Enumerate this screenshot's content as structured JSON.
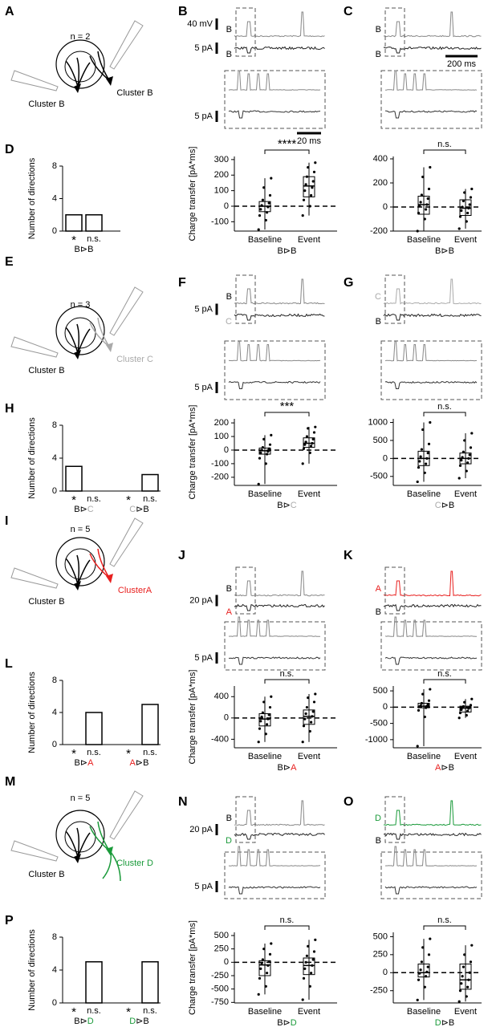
{
  "rows": [
    {
      "diagram": {
        "letter": "A",
        "n": "n = 2",
        "labels": [
          {
            "text": "Cluster B",
            "color": "#000000"
          },
          {
            "text": "Cluster B",
            "color": "#000000"
          }
        ]
      },
      "trace_panels": [
        {
          "letter": "B",
          "labels": [
            {
              "text": "B",
              "color": "#000000"
            },
            {
              "text": "B",
              "color": "#000000"
            }
          ],
          "scales": [
            "40 mV",
            "5 pA"
          ],
          "zoom_scales": [
            "5 pA",
            "20 ms"
          ]
        },
        {
          "letter": "C",
          "labels": [
            {
              "text": "B",
              "color": "#000000"
            },
            {
              "text": "B",
              "color": "#000000"
            }
          ],
          "scales": [
            "200 ms"
          ]
        }
      ]
    },
    {
      "diagram": {
        "letter": "E",
        "n": "n = 3",
        "labels": [
          {
            "text": "Cluster B",
            "color": "#000000"
          },
          {
            "text": "Cluster C",
            "color": "#aaaaaa"
          }
        ]
      },
      "trace_panels": [
        {
          "letter": "F",
          "labels": [
            {
              "text": "B",
              "color": "#000000"
            },
            {
              "text": "C",
              "color": "#aaaaaa"
            }
          ],
          "scales": [
            "5 pA"
          ],
          "zoom_scales": [
            "5 pA"
          ]
        },
        {
          "letter": "G",
          "labels": [
            {
              "text": "C",
              "color": "#aaaaaa"
            },
            {
              "text": "B",
              "color": "#000000"
            }
          ]
        }
      ]
    },
    {
      "diagram": {
        "letter": "I",
        "n": "n = 5",
        "labels": [
          {
            "text": "Cluster B",
            "color": "#000000"
          },
          {
            "text": "ClusterA",
            "color": "#e8201f"
          }
        ]
      },
      "trace_panels": [
        {
          "letter": "J",
          "labels": [
            {
              "text": "B",
              "color": "#000000"
            },
            {
              "text": "A",
              "color": "#e8201f"
            }
          ],
          "scales": [
            "20 pA"
          ],
          "zoom_scales": [
            "5 pA"
          ]
        },
        {
          "letter": "K",
          "labels": [
            {
              "text": "A",
              "color": "#e8201f"
            },
            {
              "text": "B",
              "color": "#000000"
            }
          ]
        }
      ]
    },
    {
      "diagram": {
        "letter": "M",
        "n": "n = 5",
        "labels": [
          {
            "text": "Cluster B",
            "color": "#000000"
          },
          {
            "text": "Cluster D",
            "color": "#1a9a3a"
          }
        ]
      },
      "trace_panels": [
        {
          "letter": "N",
          "labels": [
            {
              "text": "B",
              "color": "#000000"
            },
            {
              "text": "D",
              "color": "#1a9a3a"
            }
          ],
          "scales": [
            "20 pA"
          ],
          "zoom_scales": [
            "5 pA"
          ]
        },
        {
          "letter": "O",
          "labels": [
            {
              "text": "D",
              "color": "#1a9a3a"
            },
            {
              "text": "B",
              "color": "#000000"
            }
          ]
        }
      ]
    }
  ],
  "chart_data": [
    {
      "type": "bar",
      "panel": "D",
      "ylabel": "Number of directions",
      "categories": [
        "*",
        "n.s."
      ],
      "values": [
        2,
        2
      ],
      "color": "#ffffff",
      "groups": [
        [
          {
            "text": "B",
            "color": "#000000"
          },
          {
            "text": "⊳",
            "color": "#000000"
          },
          {
            "text": "B",
            "color": "#000000"
          }
        ]
      ],
      "ylim": [
        0,
        8
      ],
      "yticks": [
        0,
        4,
        8
      ]
    },
    {
      "type": "box",
      "ylabel": "Charge transfer [pA*ms]",
      "significance": "****",
      "hline": 0,
      "xlabel": [
        {
          "text": "B",
          "color": "#000000"
        },
        {
          "text": "⊳",
          "color": "#000000"
        },
        {
          "text": "B",
          "color": "#000000"
        }
      ],
      "ylim": [
        -160,
        320
      ],
      "yticks": [
        -100,
        0,
        100,
        200,
        300
      ],
      "series": [
        {
          "name": "Baseline",
          "box": [
            -150,
            -35,
            0,
            30,
            180
          ],
          "points": [
            -150,
            -90,
            -60,
            -40,
            -20,
            -5,
            5,
            20,
            40,
            70,
            120,
            180
          ]
        },
        {
          "name": "Event",
          "box": [
            -60,
            60,
            130,
            190,
            280
          ],
          "points": [
            -60,
            0,
            40,
            70,
            100,
            120,
            140,
            160,
            190,
            220,
            250,
            280
          ]
        }
      ]
    },
    {
      "type": "box",
      "significance": "n.s.",
      "hline": 0,
      "xlabel": [
        {
          "text": "B",
          "color": "#000000"
        },
        {
          "text": "⊳",
          "color": "#000000"
        },
        {
          "text": "B",
          "color": "#000000"
        }
      ],
      "ylim": [
        -200,
        420
      ],
      "yticks": [
        -200,
        0,
        200,
        400
      ],
      "series": [
        {
          "name": "Baseline",
          "box": [
            -200,
            -60,
            20,
            90,
            330
          ],
          "points": [
            -200,
            -100,
            -50,
            -20,
            10,
            20,
            40,
            70,
            100,
            150,
            250,
            330
          ]
        },
        {
          "name": "Event",
          "box": [
            -180,
            -70,
            -10,
            60,
            150
          ],
          "points": [
            -180,
            -120,
            -80,
            -50,
            -30,
            -10,
            0,
            20,
            50,
            80,
            120,
            150
          ]
        }
      ]
    },
    {
      "type": "bar",
      "panel": "H",
      "ylabel": "Number of directions",
      "categories": [
        "*",
        "n.s.",
        "*",
        "n.s."
      ],
      "values": [
        3,
        0,
        0,
        2
      ],
      "color": "#ffffff",
      "groups": [
        [
          {
            "text": "B",
            "color": "#000000"
          },
          {
            "text": "⊳",
            "color": "#000000"
          },
          {
            "text": "C",
            "color": "#aaaaaa"
          }
        ],
        [
          {
            "text": "C",
            "color": "#aaaaaa"
          },
          {
            "text": "⊳",
            "color": "#000000"
          },
          {
            "text": "B",
            "color": "#000000"
          }
        ]
      ],
      "ylim": [
        0,
        8
      ],
      "yticks": [
        0,
        4,
        8
      ]
    },
    {
      "type": "box",
      "ylabel": "Charge transfer [pA*ms]",
      "significance": "***",
      "hline": 0,
      "xlabel": [
        {
          "text": "B",
          "color": "#000000"
        },
        {
          "text": "⊳",
          "color": "#000000"
        },
        {
          "text": "C",
          "color": "#aaaaaa"
        }
      ],
      "ylim": [
        -260,
        230
      ],
      "yticks": [
        -200,
        -100,
        0,
        100,
        200
      ],
      "series": [
        {
          "name": "Baseline",
          "box": [
            -250,
            -30,
            -5,
            15,
            110
          ],
          "points": [
            -250,
            -100,
            -60,
            -30,
            -20,
            -10,
            0,
            10,
            20,
            40,
            80,
            110
          ]
        },
        {
          "name": "Event",
          "box": [
            -100,
            20,
            50,
            90,
            170
          ],
          "points": [
            -100,
            -20,
            10,
            30,
            40,
            50,
            60,
            80,
            100,
            130,
            160,
            170
          ]
        }
      ]
    },
    {
      "type": "box",
      "significance": "n.s.",
      "hline": 0,
      "xlabel": [
        {
          "text": "C",
          "color": "#aaaaaa"
        },
        {
          "text": "⊳",
          "color": "#000000"
        },
        {
          "text": "B",
          "color": "#000000"
        }
      ],
      "ylim": [
        -750,
        1100
      ],
      "yticks": [
        -500,
        0,
        500,
        1000
      ],
      "series": [
        {
          "name": "Baseline",
          "box": [
            -650,
            -200,
            0,
            200,
            1000
          ],
          "points": [
            -650,
            -400,
            -250,
            -150,
            -80,
            0,
            50,
            150,
            250,
            400,
            800,
            1000
          ]
        },
        {
          "name": "Event",
          "box": [
            -550,
            -150,
            0,
            150,
            700
          ],
          "points": [
            -550,
            -350,
            -200,
            -120,
            -50,
            0,
            30,
            100,
            180,
            300,
            500,
            700
          ]
        }
      ]
    },
    {
      "type": "bar",
      "panel": "L",
      "ylabel": "Number of directions",
      "categories": [
        "*",
        "n.s.",
        "*",
        "n.s."
      ],
      "values": [
        0,
        4,
        0,
        5
      ],
      "color": "#ffffff",
      "groups": [
        [
          {
            "text": "B",
            "color": "#000000"
          },
          {
            "text": "⊳",
            "color": "#000000"
          },
          {
            "text": "A",
            "color": "#e8201f"
          }
        ],
        [
          {
            "text": "A",
            "color": "#e8201f"
          },
          {
            "text": "⊳",
            "color": "#000000"
          },
          {
            "text": "B",
            "color": "#000000"
          }
        ]
      ],
      "ylim": [
        0,
        8
      ],
      "yticks": [
        0,
        4,
        8
      ]
    },
    {
      "type": "box",
      "ylabel": "Charge transfer [pA*ms]",
      "significance": "n.s.",
      "hline": 0,
      "xlabel": [
        {
          "text": "B",
          "color": "#000000"
        },
        {
          "text": "⊳",
          "color": "#000000"
        },
        {
          "text": "A",
          "color": "#e8201f"
        }
      ],
      "ylim": [
        -560,
        600
      ],
      "yticks": [
        -400,
        0,
        400
      ],
      "series": [
        {
          "name": "Baseline",
          "box": [
            -450,
            -150,
            -20,
            80,
            400
          ],
          "points": [
            -450,
            -300,
            -200,
            -120,
            -60,
            -20,
            20,
            60,
            100,
            200,
            300,
            400
          ]
        },
        {
          "name": "Event",
          "box": [
            -450,
            -120,
            30,
            150,
            450
          ],
          "points": [
            -450,
            -250,
            -150,
            -80,
            -20,
            30,
            80,
            120,
            200,
            300,
            380,
            450
          ]
        }
      ]
    },
    {
      "type": "box",
      "significance": "n.s.",
      "hline": 0,
      "xlabel": [
        {
          "text": "A",
          "color": "#e8201f"
        },
        {
          "text": "⊳",
          "color": "#000000"
        },
        {
          "text": "B",
          "color": "#000000"
        }
      ],
      "ylim": [
        -1250,
        650
      ],
      "yticks": [
        -1000,
        -500,
        0,
        500
      ],
      "series": [
        {
          "name": "Baseline",
          "box": [
            -1200,
            -20,
            30,
            120,
            550
          ],
          "points": [
            -1200,
            -300,
            -100,
            -20,
            10,
            30,
            50,
            80,
            120,
            200,
            400,
            550
          ]
        },
        {
          "name": "Event",
          "box": [
            -330,
            -150,
            -30,
            30,
            250
          ],
          "points": [
            -330,
            -250,
            -180,
            -120,
            -80,
            -40,
            -20,
            0,
            20,
            60,
            150,
            250
          ]
        }
      ]
    },
    {
      "type": "bar",
      "panel": "P",
      "ylabel": "Number of directions",
      "categories": [
        "*",
        "n.s.",
        "*",
        "n.s."
      ],
      "values": [
        0,
        5,
        0,
        5
      ],
      "color": "#ffffff",
      "groups": [
        [
          {
            "text": "B",
            "color": "#000000"
          },
          {
            "text": "⊳",
            "color": "#000000"
          },
          {
            "text": "D",
            "color": "#1a9a3a"
          }
        ],
        [
          {
            "text": "D",
            "color": "#1a9a3a"
          },
          {
            "text": "⊳",
            "color": "#000000"
          },
          {
            "text": "B",
            "color": "#000000"
          }
        ]
      ],
      "ylim": [
        0,
        8
      ],
      "yticks": [
        0,
        4,
        8
      ]
    },
    {
      "type": "box",
      "ylabel": "Charge transfer [pA*ms]",
      "significance": "n.s.",
      "hline": 0,
      "xlabel": [
        {
          "text": "B",
          "color": "#000000"
        },
        {
          "text": "⊳",
          "color": "#000000"
        },
        {
          "text": "D",
          "color": "#1a9a3a"
        }
      ],
      "ylim": [
        -760,
        560
      ],
      "yticks": [
        -750,
        -500,
        -250,
        0,
        250,
        500
      ],
      "series": [
        {
          "name": "Baseline",
          "box": [
            -600,
            -250,
            -50,
            30,
            350
          ],
          "points": [
            -600,
            -450,
            -300,
            -200,
            -120,
            -60,
            -20,
            10,
            50,
            150,
            250,
            350
          ]
        },
        {
          "name": "Event",
          "box": [
            -700,
            -230,
            -60,
            80,
            420
          ],
          "points": [
            -700,
            -450,
            -300,
            -200,
            -120,
            -60,
            0,
            50,
            120,
            200,
            300,
            420
          ]
        }
      ]
    },
    {
      "type": "box",
      "significance": "n.s.",
      "hline": 0,
      "xlabel": [
        {
          "text": "D",
          "color": "#1a9a3a"
        },
        {
          "text": "⊳",
          "color": "#000000"
        },
        {
          "text": "B",
          "color": "#000000"
        }
      ],
      "ylim": [
        -420,
        560
      ],
      "yticks": [
        -250,
        0,
        250,
        500
      ],
      "series": [
        {
          "name": "Baseline",
          "box": [
            -380,
            -60,
            0,
            120,
            470
          ],
          "points": [
            -380,
            -200,
            -100,
            -50,
            -10,
            10,
            40,
            80,
            150,
            250,
            350,
            470
          ]
        },
        {
          "name": "Event",
          "box": [
            -400,
            -230,
            -100,
            120,
            380
          ],
          "points": [
            -400,
            -330,
            -250,
            -200,
            -150,
            -100,
            -50,
            0,
            80,
            150,
            250,
            380
          ]
        }
      ]
    }
  ]
}
